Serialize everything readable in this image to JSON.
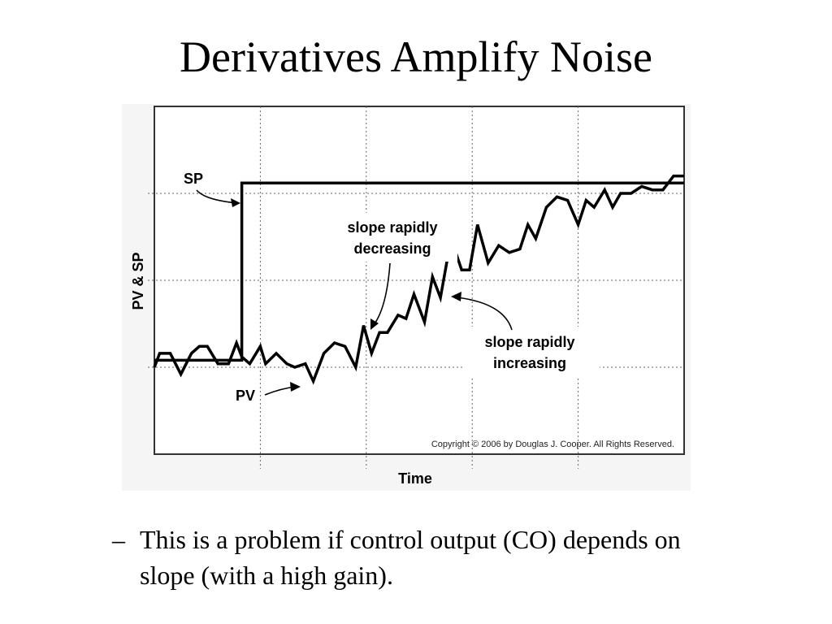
{
  "slide": {
    "title": "Derivatives Amplify Noise",
    "bullet_dash": "–",
    "bullet_text": "This is a problem if control output (CO) depends on slope (with a high gain)."
  },
  "chart_data": {
    "type": "line",
    "title": "",
    "xlabel": "Time",
    "ylabel": "PV & SP",
    "grid": true,
    "xlim": [
      0,
      100
    ],
    "ylim": [
      0,
      100
    ],
    "series": [
      {
        "name": "SP",
        "x": [
          0,
          16.5,
          16.5,
          100
        ],
        "y": [
          27,
          27,
          78,
          78
        ]
      },
      {
        "name": "PV",
        "x": [
          0,
          1,
          3,
          5,
          7,
          8.5,
          10,
          12,
          14,
          15.5,
          16.5,
          18,
          20,
          21,
          23,
          25,
          26.5,
          28.5,
          30,
          32,
          34,
          36,
          38,
          39.5,
          41,
          42.5,
          44,
          46,
          47.5,
          49,
          51,
          52.5,
          54,
          56,
          58,
          59.5,
          61,
          63,
          65,
          67,
          69,
          70.5,
          72,
          74,
          76,
          78,
          80,
          81.5,
          83,
          85,
          86.5,
          88,
          90,
          92,
          94,
          96,
          98,
          100
        ],
        "y": [
          25,
          29,
          29,
          23,
          29,
          31,
          31,
          26,
          26,
          32,
          28,
          26,
          31,
          26,
          29,
          26,
          25,
          26,
          21,
          29,
          32,
          31,
          25,
          37,
          29,
          35,
          35,
          40,
          39,
          46,
          38,
          51,
          45,
          62,
          53,
          53,
          66,
          55,
          60,
          58,
          59,
          66,
          62,
          71,
          74,
          73,
          66,
          73,
          71,
          76,
          71,
          75,
          75,
          77,
          76,
          76,
          80,
          80
        ]
      }
    ],
    "annotations": {
      "sp_label": "SP",
      "pv_label": "PV",
      "decreasing_line1": "slope rapidly",
      "decreasing_line2": "decreasing",
      "increasing_line1": "slope rapidly",
      "increasing_line2": "increasing",
      "copyright": "Copyright © 2006 by Douglas J. Cooper.  All Rights Reserved."
    }
  }
}
